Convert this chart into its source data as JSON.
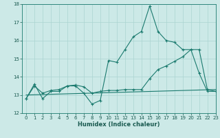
{
  "bg_color": "#cce9e7",
  "grid_color": "#aad4d1",
  "line_color": "#1a7a6e",
  "xlabel": "Humidex (Indice chaleur)",
  "ylim": [
    12,
    18
  ],
  "xlim": [
    -0.5,
    23
  ],
  "yticks": [
    12,
    13,
    14,
    15,
    16,
    17,
    18
  ],
  "xticks": [
    0,
    1,
    2,
    3,
    4,
    5,
    6,
    7,
    8,
    9,
    10,
    11,
    12,
    13,
    14,
    15,
    16,
    17,
    18,
    19,
    20,
    21,
    22,
    23
  ],
  "series1_x": [
    0,
    1,
    2,
    3,
    4,
    5,
    6,
    7,
    8,
    9,
    10,
    11,
    12,
    13,
    14,
    15,
    16,
    17,
    18,
    19,
    20,
    21,
    22,
    23
  ],
  "series1_y": [
    12.8,
    13.6,
    12.8,
    13.2,
    13.2,
    13.5,
    13.5,
    13.1,
    12.5,
    12.7,
    14.9,
    14.8,
    15.5,
    16.2,
    16.5,
    17.9,
    16.5,
    16.0,
    15.9,
    15.5,
    15.5,
    14.2,
    13.2,
    13.2
  ],
  "series2_x": [
    0,
    1,
    2,
    3,
    4,
    5,
    6,
    7,
    8,
    9,
    10,
    11,
    12,
    13,
    14,
    15,
    16,
    17,
    18,
    19,
    20,
    21,
    22,
    23
  ],
  "series2_y": [
    12.8,
    13.5,
    13.1,
    13.25,
    13.3,
    13.5,
    13.55,
    13.45,
    13.1,
    13.2,
    13.25,
    13.25,
    13.3,
    13.3,
    13.3,
    13.9,
    14.4,
    14.6,
    14.85,
    15.1,
    15.5,
    15.5,
    13.3,
    13.2
  ],
  "series3_x": [
    0,
    23
  ],
  "series3_y": [
    13.0,
    13.3
  ]
}
